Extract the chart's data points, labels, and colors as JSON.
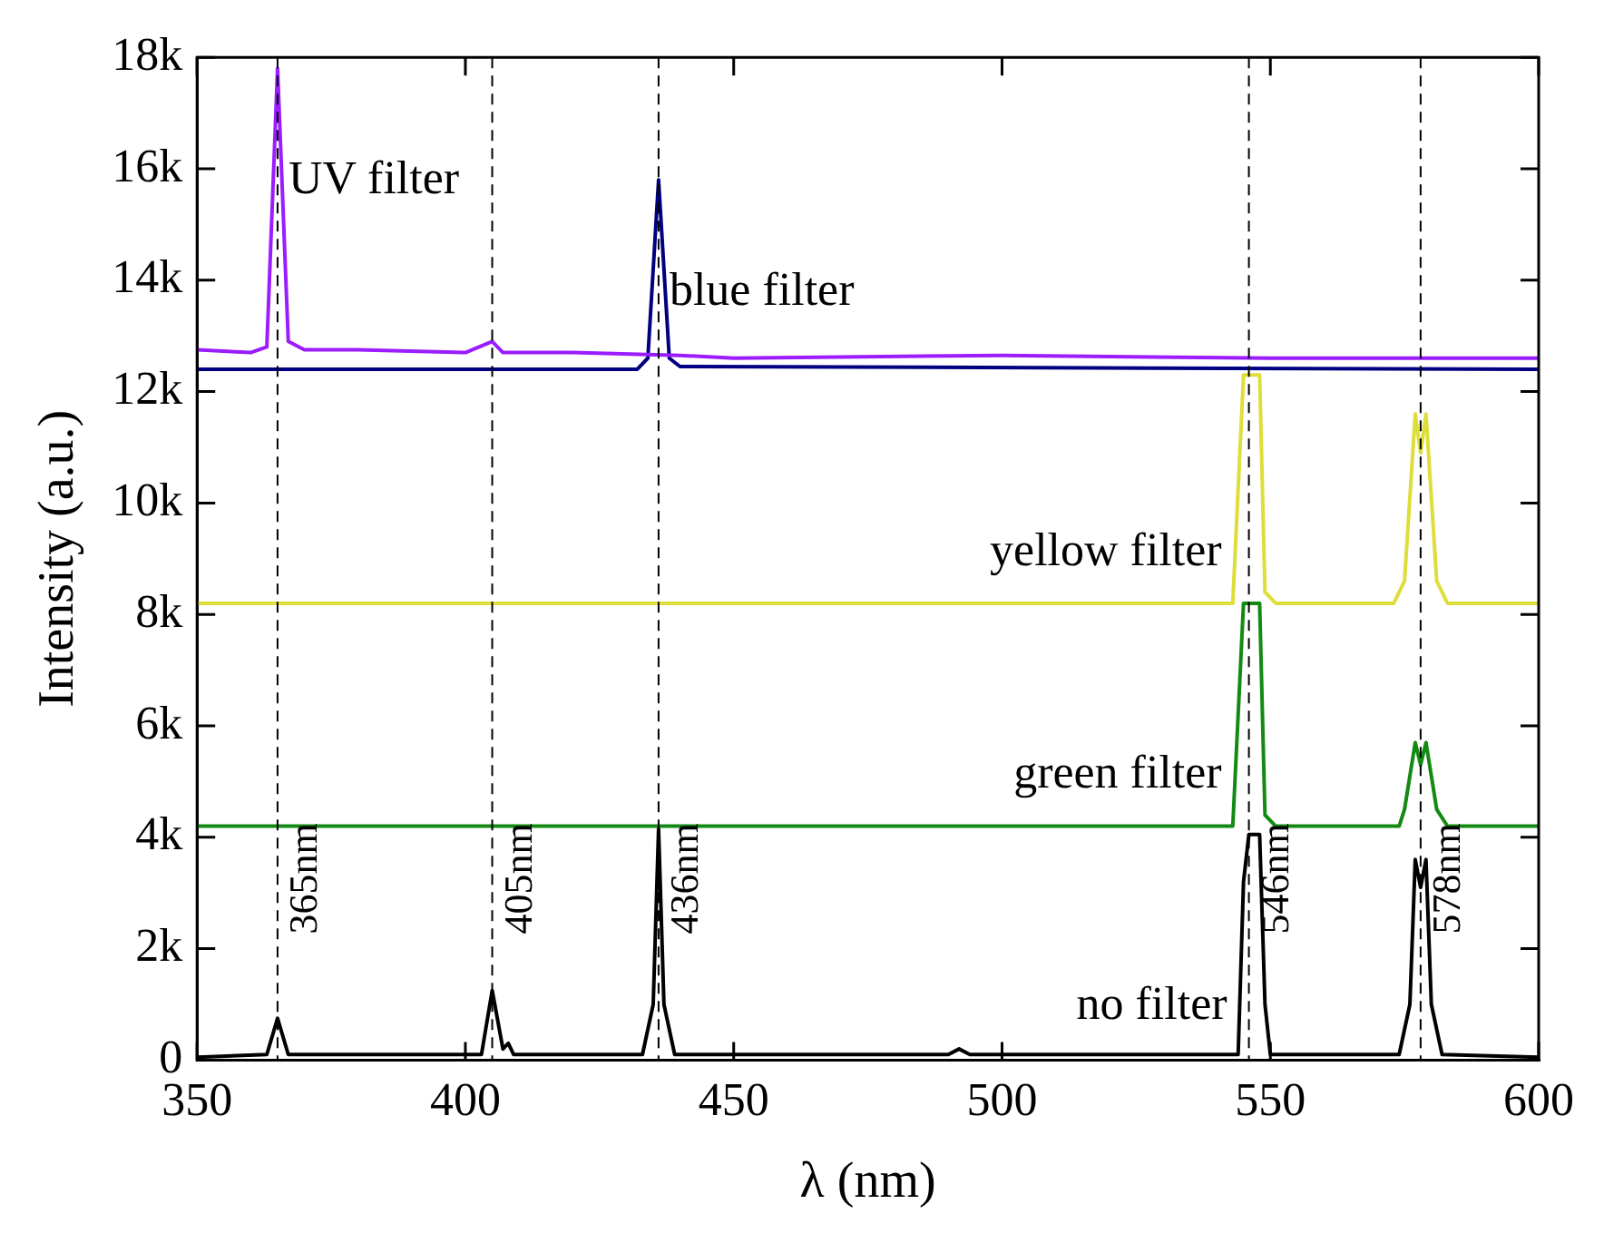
{
  "chart_data": {
    "type": "line",
    "xlabel": "λ (nm)",
    "ylabel": "Intensity (a.u.)",
    "xlim": [
      350,
      600
    ],
    "xticks": [
      350,
      400,
      450,
      500,
      550,
      600
    ],
    "ylim": [
      0,
      18000
    ],
    "yticks": [
      {
        "value": 0,
        "label": "0"
      },
      {
        "value": 2000,
        "label": "2k"
      },
      {
        "value": 4000,
        "label": "4k"
      },
      {
        "value": 6000,
        "label": "6k"
      },
      {
        "value": 8000,
        "label": "8k"
      },
      {
        "value": 10000,
        "label": "10k"
      },
      {
        "value": 12000,
        "label": "12k"
      },
      {
        "value": 14000,
        "label": "14k"
      },
      {
        "value": 16000,
        "label": "16k"
      },
      {
        "value": 18000,
        "label": "18k"
      }
    ],
    "grid": false,
    "legend": false,
    "marker": "none",
    "line_style": "solid",
    "series": [
      {
        "name": "UV filter",
        "color": "#9b1cff",
        "x": [
          350,
          360,
          363,
          365,
          367,
          370,
          380,
          400,
          405,
          407,
          420,
          440,
          450,
          500,
          550,
          560,
          600
        ],
        "values": [
          12750,
          12700,
          12800,
          17800,
          12900,
          12750,
          12750,
          12700,
          12900,
          12700,
          12700,
          12650,
          12600,
          12650,
          12600,
          12600,
          12600
        ]
      },
      {
        "name": "blue filter",
        "color": "#000080",
        "x": [
          350,
          400,
          432,
          434,
          436,
          438,
          440,
          600
        ],
        "values": [
          12400,
          12400,
          12400,
          12600,
          15800,
          12600,
          12450,
          12400
        ]
      },
      {
        "name": "yellow filter",
        "color": "#dede3a",
        "x": [
          350,
          543,
          545,
          548,
          549,
          551,
          573,
          575,
          577,
          578,
          579,
          581,
          583,
          600
        ],
        "values": [
          8200,
          8200,
          12300,
          12300,
          8400,
          8200,
          8200,
          8600,
          11600,
          10900,
          11600,
          8600,
          8200,
          8200
        ]
      },
      {
        "name": "green filter",
        "color": "#138a13",
        "x": [
          350,
          543,
          545,
          548,
          549,
          551,
          574,
          575,
          577,
          578,
          579,
          581,
          583,
          600
        ],
        "values": [
          4200,
          4200,
          8200,
          8200,
          4400,
          4200,
          4200,
          4500,
          5700,
          5300,
          5700,
          4500,
          4200,
          4200
        ]
      },
      {
        "name": "no filter",
        "color": "#000000",
        "x": [
          350,
          363,
          365,
          367,
          403,
          405,
          407,
          408,
          409,
          433,
          435,
          436,
          437,
          439,
          490,
          492,
          494,
          544,
          545,
          546,
          548,
          549,
          550,
          574,
          576,
          577,
          578,
          579,
          580,
          582,
          600
        ],
        "values": [
          50,
          100,
          750,
          100,
          100,
          1250,
          200,
          300,
          100,
          100,
          1000,
          4150,
          1000,
          100,
          100,
          200,
          100,
          100,
          3200,
          4050,
          4050,
          1000,
          100,
          100,
          1000,
          3600,
          3100,
          3600,
          1000,
          100,
          50
        ]
      }
    ],
    "ref_lines": [
      {
        "axis": "x",
        "value": 365,
        "label": "365nm",
        "line_style": "dashed",
        "color": "#000000"
      },
      {
        "axis": "x",
        "value": 405,
        "label": "405nm",
        "line_style": "dashed",
        "color": "#000000"
      },
      {
        "axis": "x",
        "value": 436,
        "label": "436nm",
        "line_style": "dashed",
        "color": "#000000"
      },
      {
        "axis": "x",
        "value": 546,
        "label": "546nm",
        "line_style": "dashed",
        "color": "#000000"
      },
      {
        "axis": "x",
        "value": 578,
        "label": "578nm",
        "line_style": "dashed",
        "color": "#000000"
      }
    ]
  }
}
